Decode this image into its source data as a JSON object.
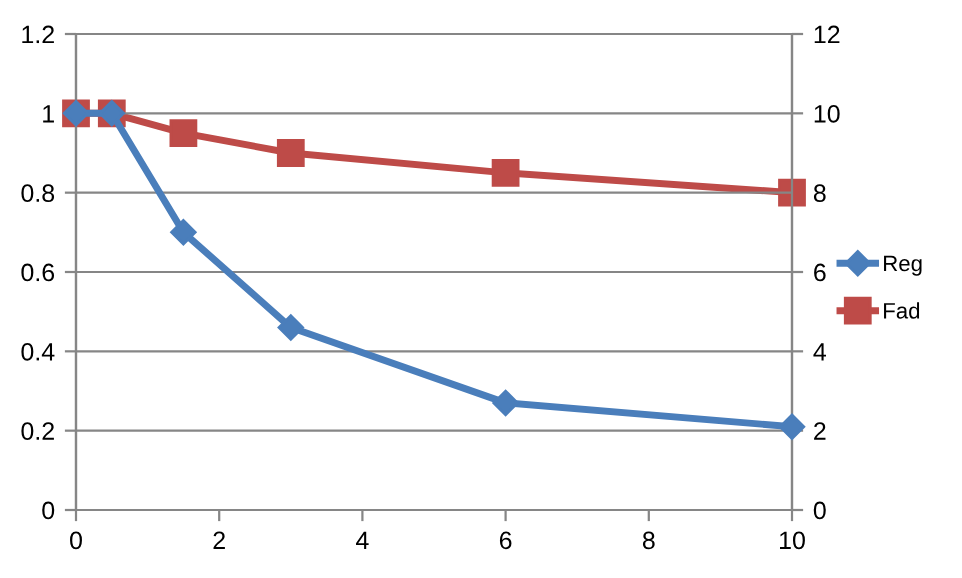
{
  "chart_data": {
    "type": "line",
    "x": [
      0,
      0.5,
      1.5,
      3,
      6,
      10
    ],
    "series": [
      {
        "name": "Reg",
        "color": "#4a7ebb",
        "marker": "diamond",
        "values": [
          1,
          1,
          0.7,
          0.46,
          0.27,
          0.21
        ]
      },
      {
        "name": "Fad",
        "color": "#be4b48",
        "marker": "square",
        "axis": "y2",
        "values": [
          10,
          10,
          9.5,
          9,
          8.5,
          8
        ]
      }
    ],
    "xlim": [
      0,
      10
    ],
    "xticks": [
      0,
      2,
      4,
      6,
      8,
      10
    ],
    "ylim": [
      0,
      1.2
    ],
    "yticks": [
      0,
      0.2,
      0.4,
      0.6,
      0.8,
      1,
      1.2
    ],
    "y2lim": [
      0,
      12
    ],
    "y2ticks": [
      0,
      2,
      4,
      6,
      8,
      10,
      12
    ],
    "grid": "y",
    "legend": "right",
    "line_style": "solid"
  }
}
